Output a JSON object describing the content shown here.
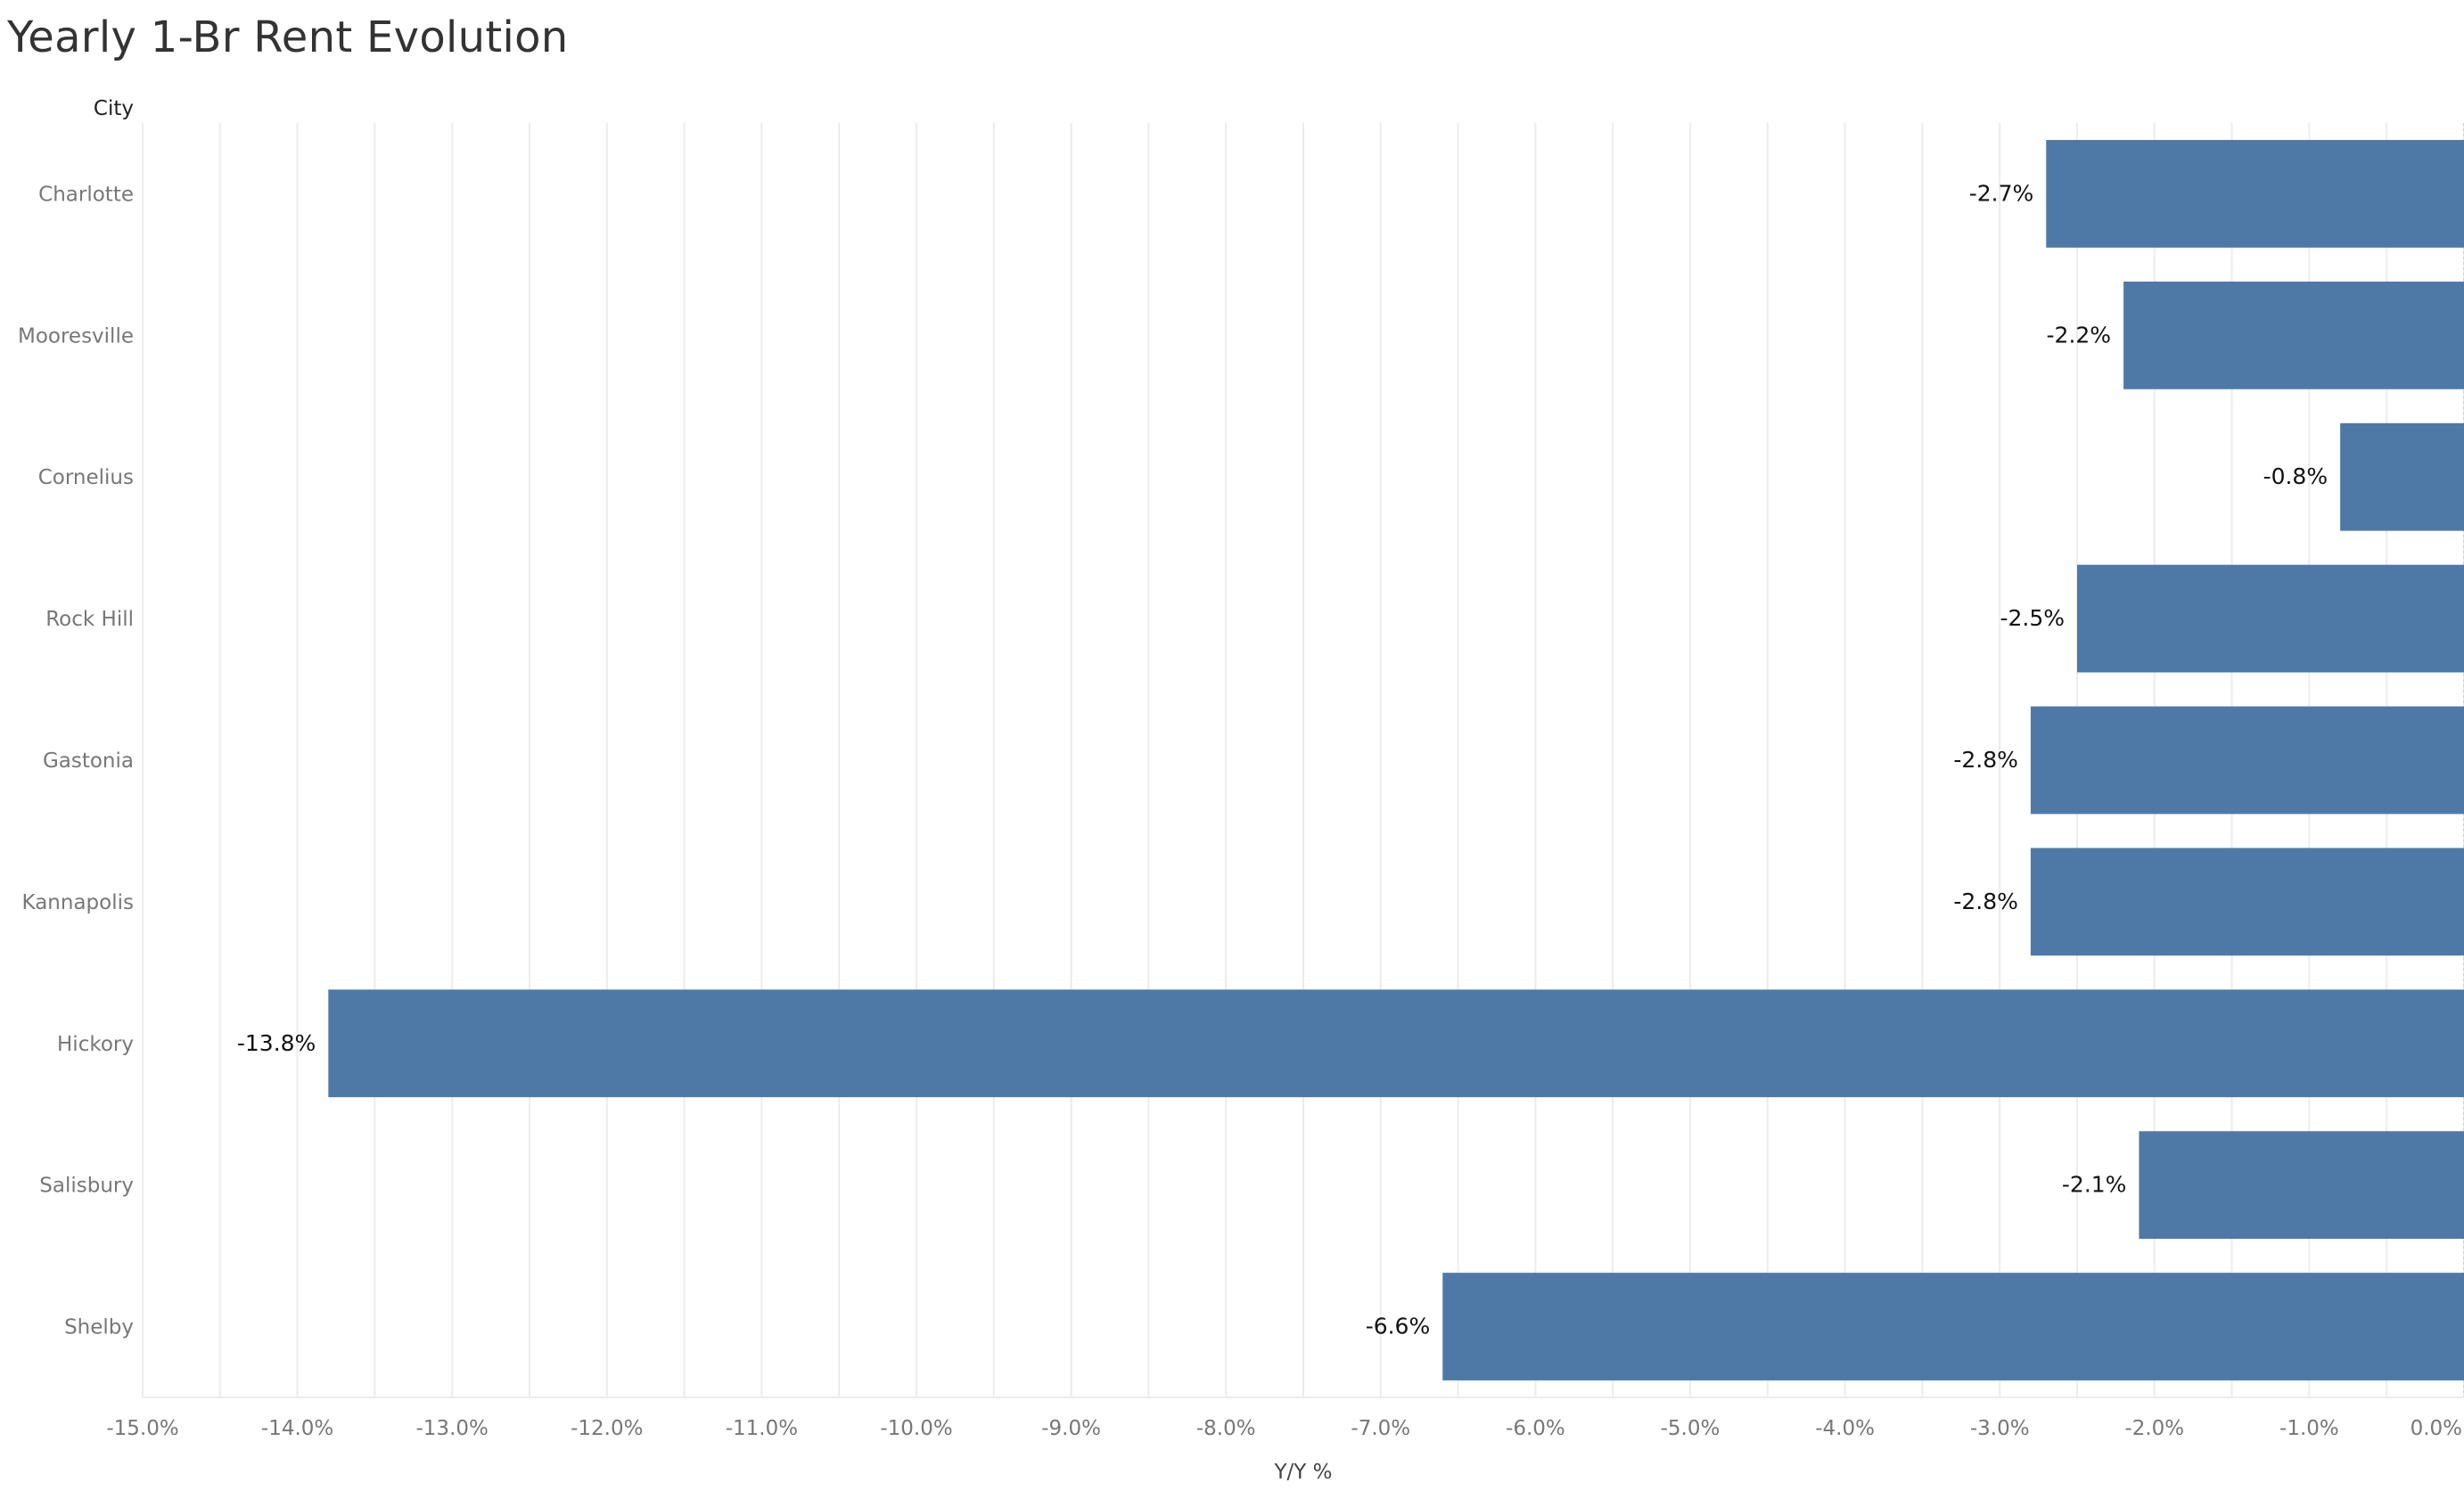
{
  "title": "Yearly 1-Br Rent Evolution",
  "chart_data": {
    "type": "bar",
    "orientation": "horizontal",
    "title": "Yearly 1-Br Rent Evolution",
    "row_header": "City",
    "xlabel": "Y/Y %",
    "ylabel": "",
    "categories": [
      "Charlotte",
      "Mooresville",
      "Cornelius",
      "Rock Hill",
      "Gastonia",
      "Kannapolis",
      "Hickory",
      "Salisbury",
      "Shelby"
    ],
    "values": [
      -2.7,
      -2.2,
      -0.8,
      -2.5,
      -2.8,
      -2.8,
      -13.8,
      -2.1,
      -6.6
    ],
    "value_labels": [
      "-2.7%",
      "-2.2%",
      "-0.8%",
      "-2.5%",
      "-2.8%",
      "-2.8%",
      "-13.8%",
      "-2.1%",
      "-6.6%"
    ],
    "xlim": [
      -15,
      0
    ],
    "xticks": [
      -15,
      -14,
      -13,
      -12,
      -11,
      -10,
      -9,
      -8,
      -7,
      -6,
      -5,
      -4,
      -3,
      -2,
      -1,
      0
    ],
    "xtick_labels": [
      "-15.0%",
      "-14.0%",
      "-13.0%",
      "-12.0%",
      "-11.0%",
      "-10.0%",
      "-9.0%",
      "-8.0%",
      "-7.0%",
      "-6.0%",
      "-5.0%",
      "-4.0%",
      "-3.0%",
      "-2.0%",
      "-1.0%",
      "0.0%"
    ],
    "grid": true,
    "bar_color": "#4e79a7",
    "grid_color": "#ececec"
  }
}
